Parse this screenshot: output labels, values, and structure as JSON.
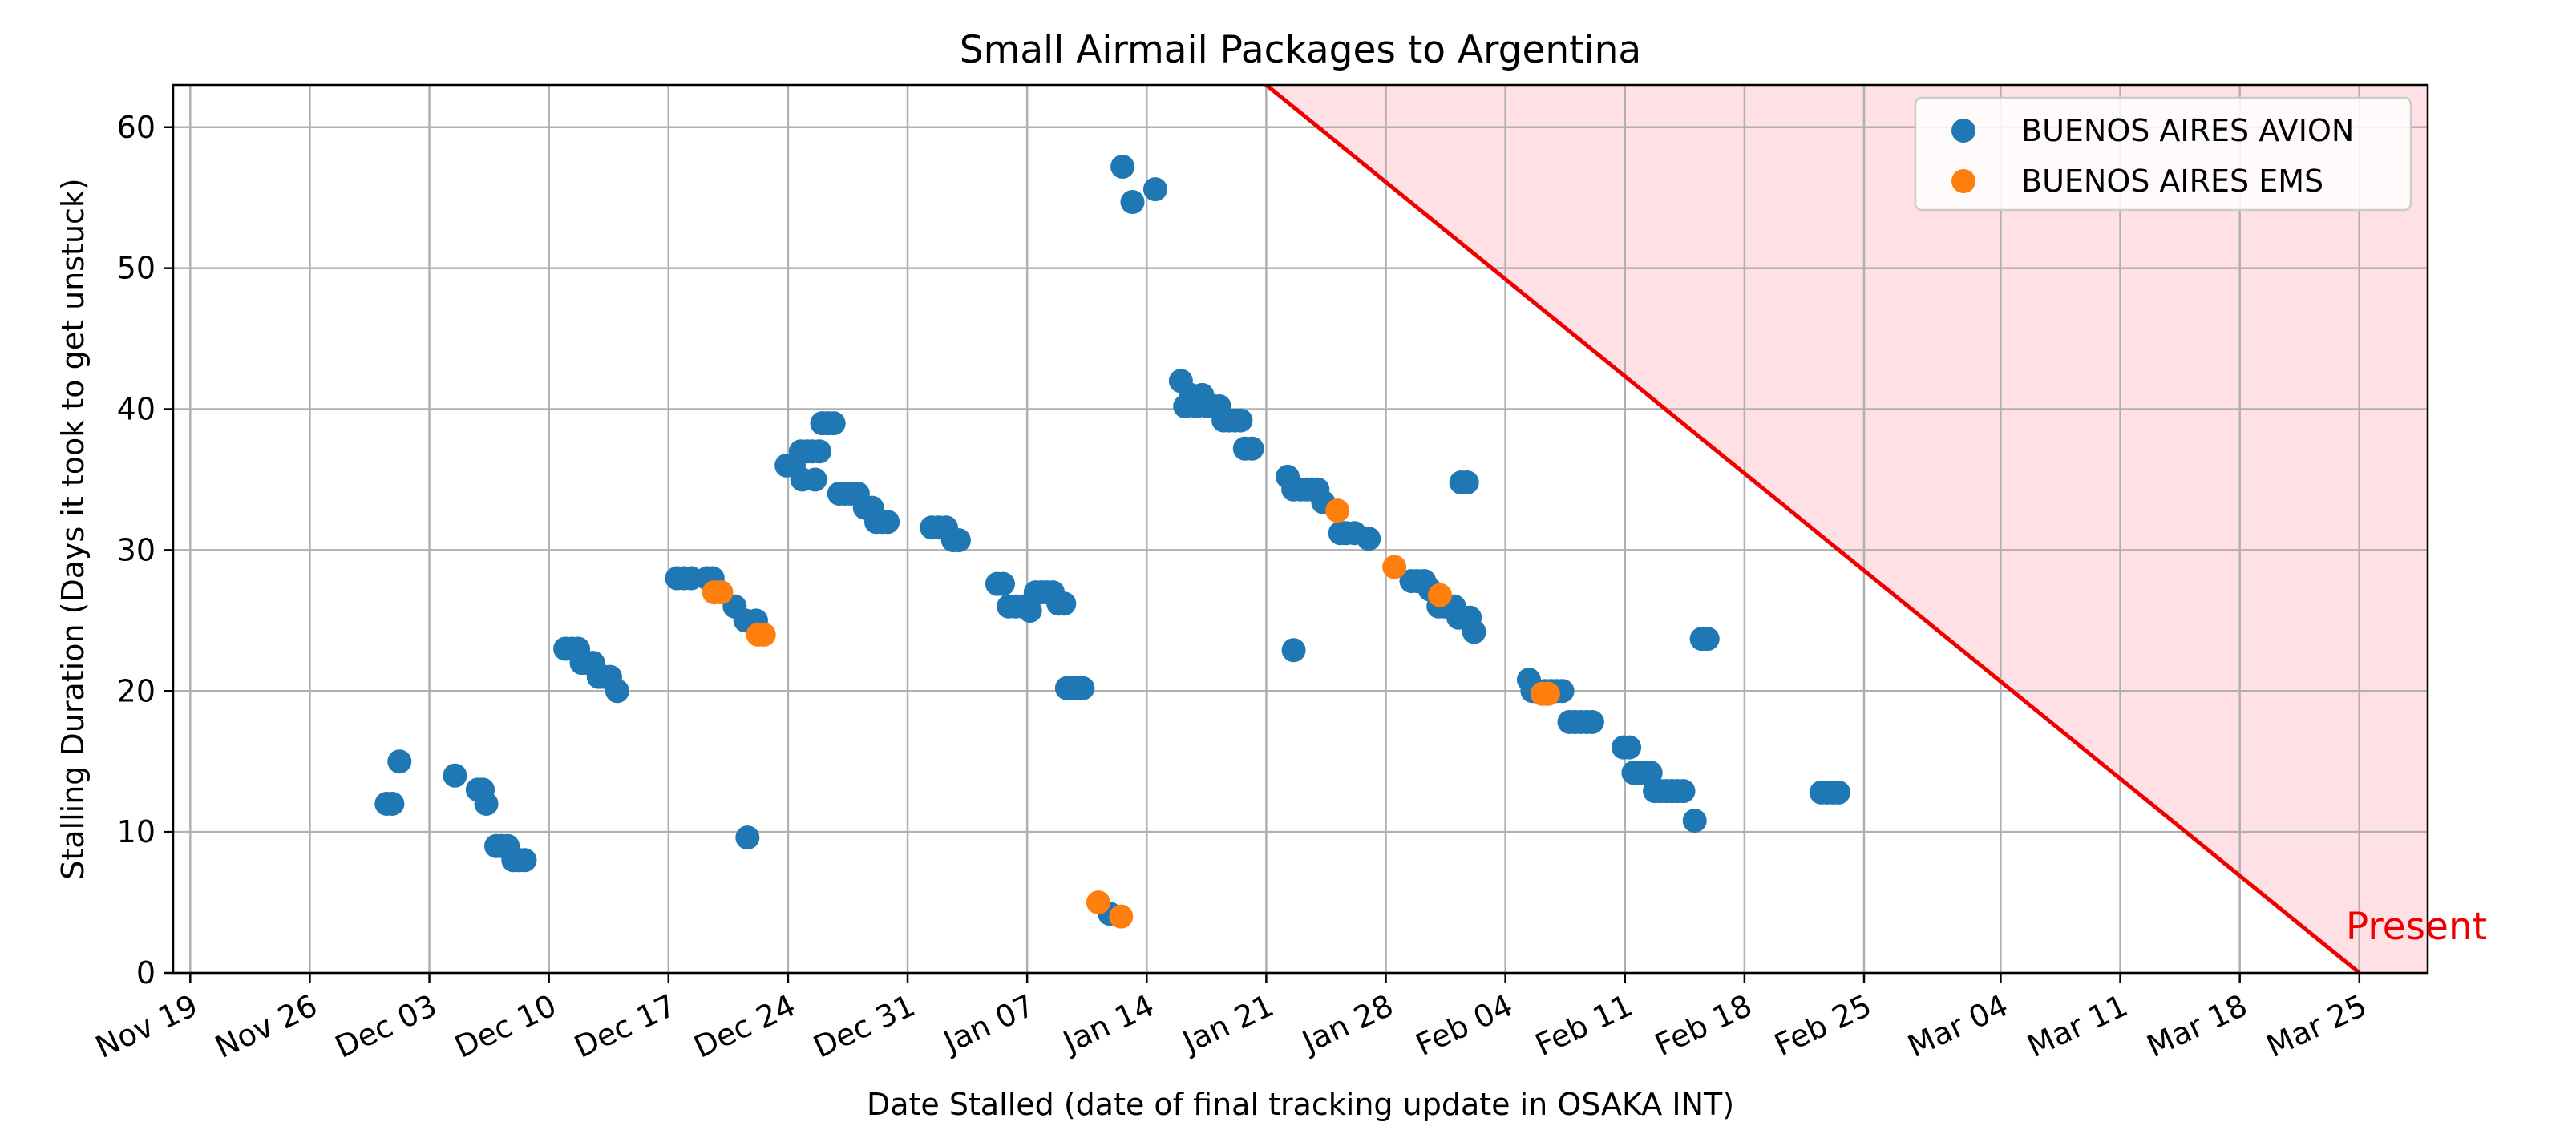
{
  "chart_data": {
    "type": "scatter",
    "title": "Small Airmail Packages to Argentina",
    "xlabel": "Date Stalled (date of final tracking update in OSAKA INT)",
    "ylabel": "Stalling Duration (Days it took to get unstuck)",
    "x_type": "date",
    "xlim": [
      "2023-11-18",
      "2024-03-29"
    ],
    "ylim": [
      0,
      63
    ],
    "x_ticks": [
      "2023-11-19",
      "2023-11-26",
      "2023-12-03",
      "2023-12-10",
      "2023-12-17",
      "2023-12-24",
      "2023-12-31",
      "2024-01-07",
      "2024-01-14",
      "2024-01-21",
      "2024-01-28",
      "2024-02-04",
      "2024-02-11",
      "2024-02-18",
      "2024-02-25",
      "2024-03-04",
      "2024-03-11",
      "2024-03-18",
      "2024-03-25"
    ],
    "x_tick_labels": [
      "Nov 19",
      "Nov 26",
      "Dec 03",
      "Dec 10",
      "Dec 17",
      "Dec 24",
      "Dec 31",
      "Jan 07",
      "Jan 14",
      "Jan 21",
      "Jan 28",
      "Feb 04",
      "Feb 11",
      "Feb 18",
      "Feb 25",
      "Mar 04",
      "Mar 11",
      "Mar 18",
      "Mar 25"
    ],
    "y_ticks": [
      0,
      10,
      20,
      30,
      40,
      50,
      60
    ],
    "grid": true,
    "legend_position": "top-right",
    "series": [
      {
        "name": "BUENOS AIRES AVION",
        "color": "#1f77b4",
        "points": [
          [
            "2023-11-30T12:00",
            12
          ],
          [
            "2023-11-30T20:00",
            12
          ],
          [
            "2023-12-01T06:00",
            15
          ],
          [
            "2023-12-04T12:00",
            14
          ],
          [
            "2023-12-05T20:00",
            13
          ],
          [
            "2023-12-06T03:00",
            13
          ],
          [
            "2023-12-06T08:00",
            12
          ],
          [
            "2023-12-06T22:00",
            9
          ],
          [
            "2023-12-07T06:00",
            9
          ],
          [
            "2023-12-07T14:00",
            9
          ],
          [
            "2023-12-07T22:00",
            8
          ],
          [
            "2023-12-08T06:00",
            8
          ],
          [
            "2023-12-08T14:00",
            8
          ],
          [
            "2023-12-10T23:00",
            23
          ],
          [
            "2023-12-11T08:00",
            23
          ],
          [
            "2023-12-11T17:00",
            23
          ],
          [
            "2023-12-11T22:00",
            22
          ],
          [
            "2023-12-12T06:00",
            22
          ],
          [
            "2023-12-12T14:00",
            22
          ],
          [
            "2023-12-12T22:00",
            21
          ],
          [
            "2023-12-13T06:00",
            21
          ],
          [
            "2023-12-13T14:00",
            21
          ],
          [
            "2023-12-14T00:00",
            20
          ],
          [
            "2023-12-17T12:00",
            28
          ],
          [
            "2023-12-17T22:00",
            28
          ],
          [
            "2023-12-18T08:00",
            28
          ],
          [
            "2023-12-19T06:00",
            28
          ],
          [
            "2023-12-19T14:00",
            28
          ],
          [
            "2023-12-20T21:00",
            26
          ],
          [
            "2023-12-21T12:00",
            25
          ],
          [
            "2023-12-21T15:00",
            9.6
          ],
          [
            "2023-12-22T03:00",
            25
          ],
          [
            "2023-12-23T22:00",
            36
          ],
          [
            "2023-12-24T08:00",
            36
          ],
          [
            "2023-12-24T18:00",
            37
          ],
          [
            "2023-12-24T20:00",
            35
          ],
          [
            "2023-12-25T03:00",
            37
          ],
          [
            "2023-12-25T10:00",
            37
          ],
          [
            "2023-12-25T14:00",
            35
          ],
          [
            "2023-12-25T20:00",
            37
          ],
          [
            "2023-12-26T00:00",
            39
          ],
          [
            "2023-12-26T08:00",
            39
          ],
          [
            "2023-12-26T16:00",
            39
          ],
          [
            "2023-12-27T00:00",
            34
          ],
          [
            "2023-12-27T08:00",
            34
          ],
          [
            "2023-12-27T16:00",
            34
          ],
          [
            "2023-12-28T02:00",
            34
          ],
          [
            "2023-12-28T12:00",
            33
          ],
          [
            "2023-12-28T22:00",
            33
          ],
          [
            "2023-12-29T04:00",
            32
          ],
          [
            "2023-12-29T12:00",
            32
          ],
          [
            "2023-12-29T20:00",
            32
          ],
          [
            "2024-01-01T10:00",
            31.6
          ],
          [
            "2024-01-01T20:00",
            31.6
          ],
          [
            "2024-01-02T06:00",
            31.6
          ],
          [
            "2024-01-02T16:00",
            30.7
          ],
          [
            "2024-01-03T00:00",
            30.7
          ],
          [
            "2024-01-05T06:00",
            27.6
          ],
          [
            "2024-01-05T14:00",
            27.6
          ],
          [
            "2024-01-05T22:00",
            26
          ],
          [
            "2024-01-06T08:00",
            26
          ],
          [
            "2024-01-06T18:00",
            26
          ],
          [
            "2024-01-07T04:00",
            25.7
          ],
          [
            "2024-01-07T12:00",
            27
          ],
          [
            "2024-01-07T20:00",
            27
          ],
          [
            "2024-01-08T04:00",
            27
          ],
          [
            "2024-01-08T12:00",
            27
          ],
          [
            "2024-01-08T20:00",
            26.2
          ],
          [
            "2024-01-09T04:00",
            26.2
          ],
          [
            "2024-01-09T08:00",
            20.2
          ],
          [
            "2024-01-09T16:00",
            20.2
          ],
          [
            "2024-01-10T00:00",
            20.2
          ],
          [
            "2024-01-10T06:00",
            20.2
          ],
          [
            "2024-01-11T20:00",
            4.2
          ],
          [
            "2024-01-12T14:00",
            57.2
          ],
          [
            "2024-01-13T04:00",
            54.7
          ],
          [
            "2024-01-14T12:00",
            55.6
          ],
          [
            "2024-01-16T00:00",
            42
          ],
          [
            "2024-01-16T06:00",
            40.2
          ],
          [
            "2024-01-16T14:00",
            41
          ],
          [
            "2024-01-16T22:00",
            40.2
          ],
          [
            "2024-01-17T06:00",
            41
          ],
          [
            "2024-01-17T14:00",
            40.2
          ],
          [
            "2024-01-17T22:00",
            40.2
          ],
          [
            "2024-01-18T06:00",
            40.2
          ],
          [
            "2024-01-18T12:00",
            39.2
          ],
          [
            "2024-01-18T20:00",
            39.2
          ],
          [
            "2024-01-19T04:00",
            39.2
          ],
          [
            "2024-01-19T12:00",
            39.2
          ],
          [
            "2024-01-19T18:00",
            37.2
          ],
          [
            "2024-01-20T04:00",
            37.2
          ],
          [
            "2024-01-22T06:00",
            35.2
          ],
          [
            "2024-01-22T14:00",
            34.3
          ],
          [
            "2024-01-22T14:30",
            22.9
          ],
          [
            "2024-01-23T00:00",
            34.3
          ],
          [
            "2024-01-23T08:00",
            34.3
          ],
          [
            "2024-01-23T16:00",
            34.3
          ],
          [
            "2024-01-24T00:00",
            34.3
          ],
          [
            "2024-01-24T08:00",
            33.4
          ],
          [
            "2024-01-25T08:00",
            31.2
          ],
          [
            "2024-01-25T16:00",
            31.2
          ],
          [
            "2024-01-26T04:00",
            31.2
          ],
          [
            "2024-01-27T00:00",
            30.8
          ],
          [
            "2024-01-29T12:00",
            27.8
          ],
          [
            "2024-01-29T20:00",
            27.8
          ],
          [
            "2024-01-30T06:00",
            27.8
          ],
          [
            "2024-01-30T14:00",
            27.2
          ],
          [
            "2024-01-31T02:00",
            26
          ],
          [
            "2024-01-31T10:00",
            26
          ],
          [
            "2024-01-31T18:00",
            26
          ],
          [
            "2024-02-01T00:00",
            26
          ],
          [
            "2024-02-01T06:00",
            25.2
          ],
          [
            "2024-02-01T14:00",
            25.2
          ],
          [
            "2024-02-01T22:00",
            25.2
          ],
          [
            "2024-02-02T04:00",
            24.2
          ],
          [
            "2024-02-01T10:00",
            34.8
          ],
          [
            "2024-02-01T18:00",
            34.8
          ],
          [
            "2024-02-05T09:00",
            20.8
          ],
          [
            "2024-02-05T14:00",
            20
          ],
          [
            "2024-02-05T22:00",
            20
          ],
          [
            "2024-02-06T08:00",
            20
          ],
          [
            "2024-02-06T16:00",
            20
          ],
          [
            "2024-02-07T00:00",
            20
          ],
          [
            "2024-02-07T08:00",
            20
          ],
          [
            "2024-02-07T18:00",
            17.8
          ],
          [
            "2024-02-08T02:00",
            17.8
          ],
          [
            "2024-02-08T10:00",
            17.8
          ],
          [
            "2024-02-08T18:00",
            17.8
          ],
          [
            "2024-02-09T02:00",
            17.8
          ],
          [
            "2024-02-10T22:00",
            16
          ],
          [
            "2024-02-11T06:00",
            16
          ],
          [
            "2024-02-11T12:00",
            14.2
          ],
          [
            "2024-02-11T20:00",
            14.2
          ],
          [
            "2024-02-12T04:00",
            14.2
          ],
          [
            "2024-02-12T12:00",
            14.2
          ],
          [
            "2024-02-12T18:00",
            12.9
          ],
          [
            "2024-02-13T02:00",
            12.9
          ],
          [
            "2024-02-13T10:00",
            12.9
          ],
          [
            "2024-02-13T18:00",
            12.9
          ],
          [
            "2024-02-14T02:00",
            12.9
          ],
          [
            "2024-02-14T10:00",
            12.9
          ],
          [
            "2024-02-15T02:00",
            10.8
          ],
          [
            "2024-02-15T12:00",
            23.7
          ],
          [
            "2024-02-15T20:00",
            23.7
          ],
          [
            "2024-02-22T12:00",
            12.8
          ],
          [
            "2024-02-22T20:00",
            12.8
          ],
          [
            "2024-02-23T04:00",
            12.8
          ],
          [
            "2024-02-23T12:00",
            12.8
          ]
        ]
      },
      {
        "name": "BUENOS AIRES EMS",
        "color": "#ff7f0e",
        "points": [
          [
            "2023-12-19T16:00",
            27
          ],
          [
            "2023-12-20T02:00",
            27
          ],
          [
            "2023-12-22T06:00",
            24
          ],
          [
            "2023-12-22T14:00",
            24
          ],
          [
            "2024-01-11T04:00",
            5
          ],
          [
            "2024-01-12T12:00",
            4
          ],
          [
            "2024-01-25T04:00",
            32.8
          ],
          [
            "2024-01-28T12:00",
            28.8
          ],
          [
            "2024-01-31T04:00",
            26.8
          ],
          [
            "2024-02-06T04:00",
            19.8
          ],
          [
            "2024-02-06T12:00",
            19.8
          ]
        ]
      }
    ],
    "reference_line": {
      "from": [
        "2024-01-21",
        63
      ],
      "to": [
        "2024-03-25",
        0
      ],
      "color": "#ee0000",
      "shaded_region_color": "#ffe0e4",
      "label": "Present"
    }
  }
}
